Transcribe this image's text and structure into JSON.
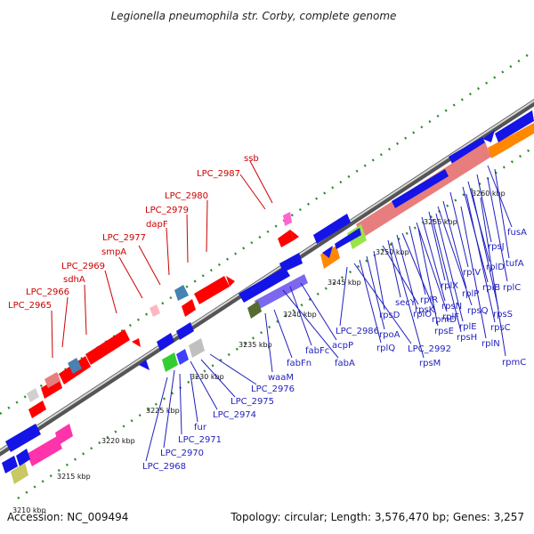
{
  "title": "Legionella pneumophila str. Corby, complete genome",
  "accession_text": "Accession: NC_009494",
  "summary_text": "Topology: circular; Length: 3,576,470 bp; Genes: 3,257",
  "ticks": [
    "3210 kbp",
    "3215 kbp",
    "3220 kbp",
    "3225 kbp",
    "3230 kbp",
    "3235 kbp",
    "3240 kbp",
    "3245 kbp",
    "3250 kbp",
    "3255 kbp",
    "3260 kbp"
  ],
  "red_labels": [
    "ssb",
    "LPC_2987",
    "LPC_2980",
    "LPC_2979",
    "dapF",
    "LPC_2977",
    "smpA",
    "LPC_2969",
    "sdhA",
    "LPC_2966",
    "LPC_2965"
  ],
  "blue_labels": [
    "fusA",
    "rpsJ",
    "tufA",
    "rplD",
    "rplC",
    "rplB",
    "rplV",
    "rpsS",
    "rpsC",
    "rplP",
    "rpmC",
    "rpsQ",
    "rplN",
    "rplX",
    "rplE",
    "rpsN",
    "rpsH",
    "rplF",
    "rplR",
    "rpsE",
    "rpmD",
    "rplO",
    "secY",
    "rpsM",
    "rpsK",
    "rpsD",
    "rpoA",
    "rplQ",
    "LPC_2992",
    "LPC_2986",
    "acpP",
    "fabFc",
    "fabA",
    "fabFn",
    "waaM",
    "LPC_2976",
    "LPC_2975",
    "LPC_2974",
    "fur",
    "LPC_2971",
    "LPC_2970",
    "LPC_2968"
  ],
  "colors": {
    "forward_gene": "#1414e6",
    "reverse_gene": "#ff0000",
    "rrna": "#ff9933",
    "trna": "#e87d7d",
    "backbone": "#808080",
    "dotted": "#2e8b2e"
  }
}
